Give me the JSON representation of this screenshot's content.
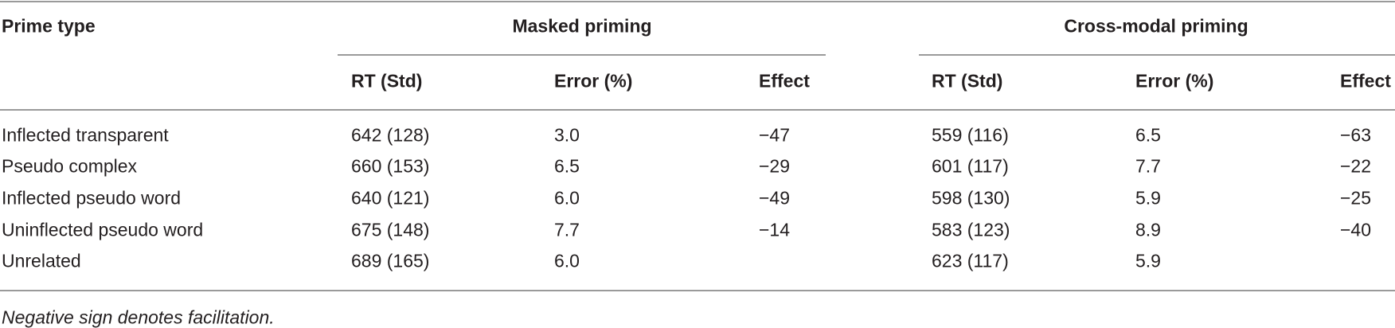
{
  "table": {
    "header": {
      "prime_type": "Prime type",
      "groups": [
        "Masked priming",
        "Cross-modal priming"
      ],
      "columns": [
        "RT (Std)",
        "Error (%)",
        "Effect",
        "RT (Std)",
        "Error (%)",
        "Effect"
      ]
    },
    "rows": [
      {
        "prime": "Inflected transparent",
        "masked": {
          "rt": "642 (128)",
          "error": "3.0",
          "effect": "−47"
        },
        "cross": {
          "rt": "559 (116)",
          "error": "6.5",
          "effect": "−63"
        }
      },
      {
        "prime": "Pseudo complex",
        "masked": {
          "rt": "660 (153)",
          "error": "6.5",
          "effect": "−29"
        },
        "cross": {
          "rt": "601 (117)",
          "error": "7.7",
          "effect": "−22"
        }
      },
      {
        "prime": "Inflected pseudo word",
        "masked": {
          "rt": "640 (121)",
          "error": "6.0",
          "effect": "−49"
        },
        "cross": {
          "rt": "598 (130)",
          "error": "5.9",
          "effect": "−25"
        }
      },
      {
        "prime": "Uninflected pseudo word",
        "masked": {
          "rt": "675 (148)",
          "error": "7.7",
          "effect": "−14"
        },
        "cross": {
          "rt": "583 (123)",
          "error": "8.9",
          "effect": "−40"
        }
      },
      {
        "prime": "Unrelated",
        "masked": {
          "rt": "689 (165)",
          "error": "6.0"
        },
        "cross": {
          "rt": "623 (117)",
          "error": "5.9"
        }
      }
    ],
    "footnote": "Negative sign denotes facilitation."
  }
}
